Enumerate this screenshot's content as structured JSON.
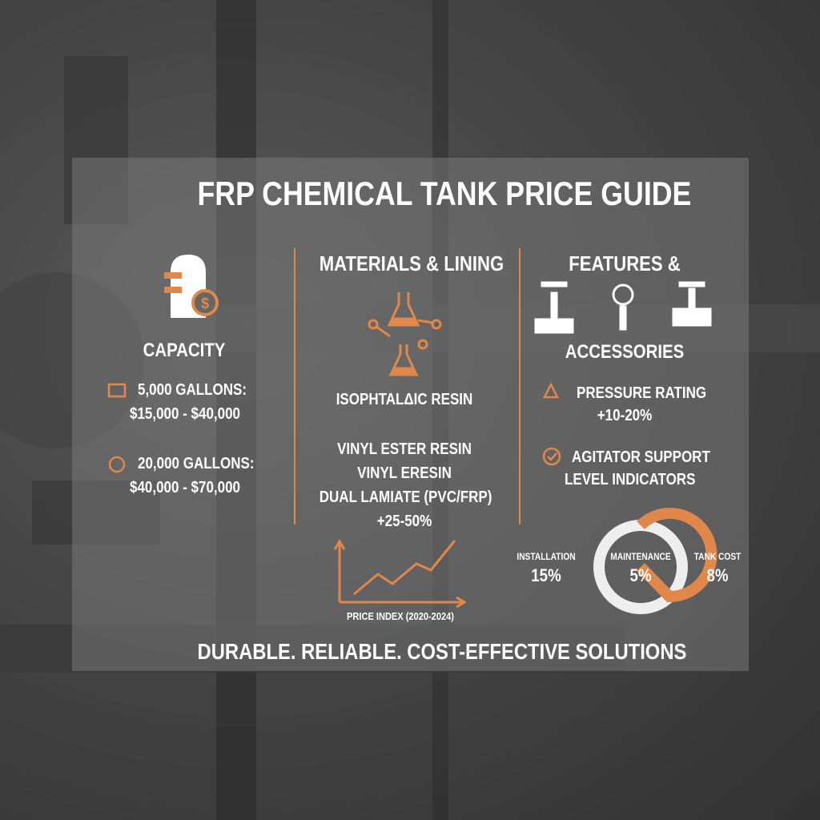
{
  "header": {
    "title": "FRP CHEMICAL TANK PRICE GUIDE"
  },
  "capacity": {
    "heading": "CAPACITY",
    "items": [
      {
        "label": "5,000 GALLONS:",
        "price": "$15,000 - $40,000"
      },
      {
        "label": "20,000 GALLONS:",
        "price": "$40,000 - $70,000"
      }
    ]
  },
  "materials": {
    "heading": "MATERIALS & LINING",
    "items": [
      "ISOPHTALΔIC RESIN",
      "VINYL ESTER RESIN",
      "VINYL ERESIN",
      "DUAL LAMIATE (PVC/FRP)"
    ],
    "premium": "+25-50%"
  },
  "features": {
    "heading": "FEATURES &",
    "subheading": "ACCESSORIES",
    "items": [
      {
        "label": "PRESSURE RATING",
        "note": "+10-20%"
      },
      {
        "label": "AGITATOR SUPPORT"
      },
      {
        "label": "LEVEL INDICATORS"
      }
    ]
  },
  "price_index": {
    "label": "PRICE INDEX (2020-2024)"
  },
  "cost_breakdown": [
    {
      "label": "INSTALLATION",
      "value": "15%"
    },
    {
      "label": "MAINTENANCE",
      "value": "5%"
    },
    {
      "label": "TANK COST",
      "value": "8%"
    }
  ],
  "footer": {
    "tagline": "DURABLE. RELIABLE. COST-EFFECTIVE SOLUTIONS"
  }
}
